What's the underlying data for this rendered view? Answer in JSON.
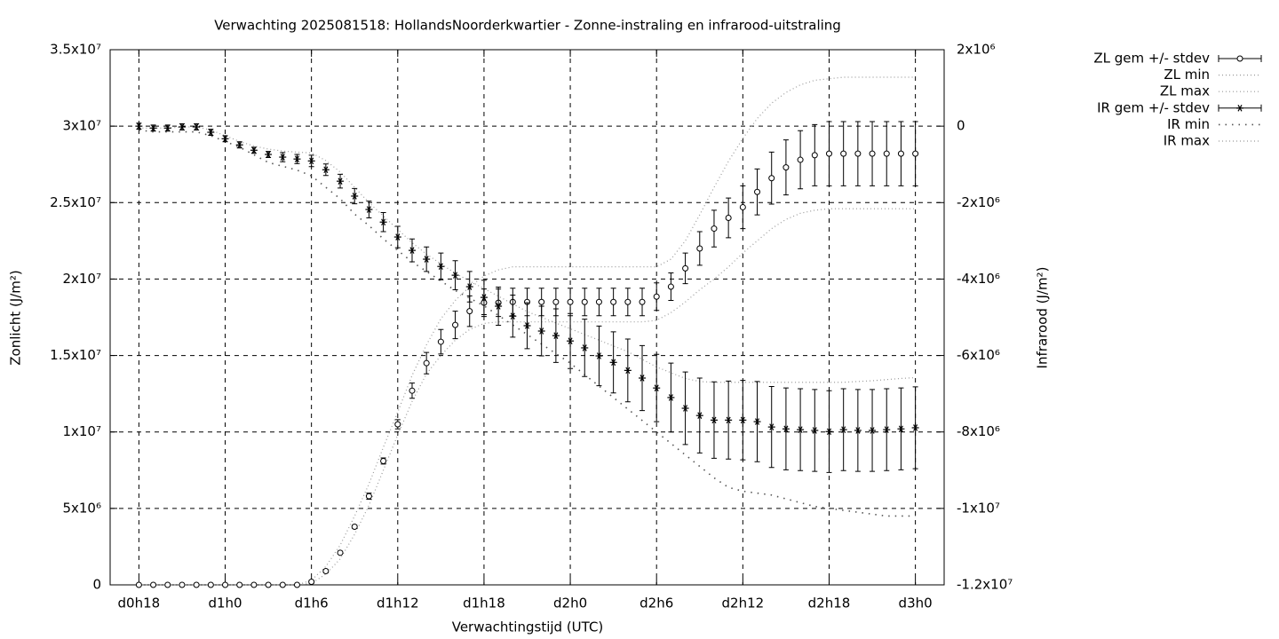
{
  "chart_data": {
    "type": "errorbar-line",
    "title": "Verwachting 2025081518: HollandsNoorderkwartier - Zonne-instraling en infrarood-uitstraling",
    "x_label": "Verwachtingstijd (UTC)",
    "y_label": "Zonlicht (J/m²)",
    "y2_label": "Infrarood (J/m²)",
    "x": [
      18,
      19,
      20,
      21,
      22,
      23,
      24,
      25,
      26,
      27,
      28,
      29,
      30,
      31,
      32,
      33,
      34,
      35,
      36,
      37,
      38,
      39,
      40,
      41,
      42,
      43,
      44,
      45,
      46,
      47,
      48,
      49,
      50,
      51,
      52,
      53,
      54,
      55,
      56,
      57,
      58,
      59,
      60,
      61,
      62,
      63,
      64,
      65,
      66,
      67,
      68,
      69,
      70,
      71,
      72
    ],
    "xlim": [
      16,
      74
    ],
    "xticks": [
      {
        "value": 18,
        "label": "d0h18"
      },
      {
        "value": 24,
        "label": "d1h0"
      },
      {
        "value": 30,
        "label": "d1h6"
      },
      {
        "value": 36,
        "label": "d1h12"
      },
      {
        "value": 42,
        "label": "d1h18"
      },
      {
        "value": 48,
        "label": "d2h0"
      },
      {
        "value": 54,
        "label": "d2h6"
      },
      {
        "value": 60,
        "label": "d2h12"
      },
      {
        "value": 66,
        "label": "d2h18"
      },
      {
        "value": 72,
        "label": "d3h0"
      }
    ],
    "ylim": [
      0,
      35000000.0
    ],
    "yticks": [
      0,
      {
        "value": 5000000.0,
        "label": "5x10⁶"
      },
      {
        "value": 10000000.0,
        "label": "1x10⁷"
      },
      {
        "value": 15000000.0,
        "label": "1.5x10⁷"
      },
      {
        "value": 20000000.0,
        "label": "2x10⁷"
      },
      {
        "value": 25000000.0,
        "label": "2.5x10⁷"
      },
      {
        "value": 30000000.0,
        "label": "3x10⁷"
      },
      {
        "value": 35000000.0,
        "label": "3.5x10⁷"
      }
    ],
    "y2lim": [
      -12000000.0,
      2000000.0
    ],
    "y2ticks": [
      {
        "value": -12000000.0,
        "label": "-1.2x10⁷"
      },
      {
        "value": -10000000.0,
        "label": "-1x10⁷"
      },
      {
        "value": -8000000.0,
        "label": "-8x10⁶"
      },
      {
        "value": -6000000.0,
        "label": "-6x10⁶"
      },
      {
        "value": -4000000.0,
        "label": "-4x10⁶"
      },
      {
        "value": -2000000.0,
        "label": "-2x10⁶"
      },
      0,
      {
        "value": 2000000.0,
        "label": "2x10⁶"
      }
    ],
    "grid": true,
    "legend": "outside-right",
    "series": [
      {
        "name": "ZL gem +/- stdev",
        "color": "#000000",
        "marker": "circle",
        "values": [
          0,
          0,
          0,
          0,
          0,
          0,
          0,
          0,
          0,
          0,
          0,
          0,
          200000.0,
          900000.0,
          2100000.0,
          3800000.0,
          5800000.0,
          8100000.0,
          10500000.0,
          12700000.0,
          14500000.0,
          15900000.0,
          17000000.0,
          17900000.0,
          18450000.0,
          18450000.0,
          18500000.0,
          18500000.0,
          18500000.0,
          18500000.0,
          18500000.0,
          18500000.0,
          18500000.0,
          18500000.0,
          18500000.0,
          18500000.0,
          18850000.0,
          19500000.0,
          20700000.0,
          22000000.0,
          23300000.0,
          24000000.0,
          24700000.0,
          25700000.0,
          26600000.0,
          27300000.0,
          27800000.0,
          28100000.0,
          28200000.0,
          28200000.0,
          28200000.0,
          28200000.0,
          28200000.0,
          28200000.0,
          28200000.0
        ],
        "errors": [
          0,
          0,
          0,
          0,
          0,
          0,
          0,
          0,
          0,
          0,
          0,
          0,
          100000.0,
          100000.0,
          100000.0,
          100000.0,
          200000.0,
          200000.0,
          300000.0,
          500000.0,
          700000.0,
          800000.0,
          900000.0,
          1000000.0,
          900000.0,
          900000.0,
          900000.0,
          900000.0,
          900000.0,
          900000.0,
          900000.0,
          900000.0,
          900000.0,
          900000.0,
          900000.0,
          900000.0,
          900000.0,
          900000.0,
          1000000.0,
          1100000.0,
          1200000.0,
          1300000.0,
          1400000.0,
          1500000.0,
          1700000.0,
          1800000.0,
          1900000.0,
          2000000.0,
          2100000.0,
          2100000.0,
          2100000.0,
          2100000.0,
          2100000.0,
          2100000.0,
          2100000.0
        ]
      },
      {
        "name": "ZL min",
        "color": "#999999",
        "line_style": "dotted",
        "values": [
          0,
          0,
          0,
          0,
          0,
          0,
          0,
          0,
          0,
          0,
          0,
          0,
          100000.0,
          700000.0,
          1700000.0,
          3300000.0,
          5200000.0,
          7500000.0,
          9800000.0,
          12000000.0,
          13800000.0,
          15000000.0,
          16000000.0,
          16700000.0,
          17100000.0,
          17200000.0,
          17200000.0,
          17200000.0,
          17200000.0,
          17200000.0,
          17200000.0,
          17200000.0,
          17200000.0,
          17200000.0,
          17200000.0,
          17200000.0,
          17300000.0,
          17800000.0,
          18500000.0,
          19300000.0,
          20000000.0,
          20800000.0,
          21700000.0,
          22500000.0,
          23300000.0,
          23900000.0,
          24300000.0,
          24500000.0,
          24600000.0,
          24600000.0,
          24600000.0,
          24600000.0,
          24600000.0,
          24600000.0,
          24600000.0
        ]
      },
      {
        "name": "ZL max",
        "color": "#999999",
        "line_style": "dotted",
        "values": [
          0,
          0,
          0,
          0,
          0,
          0,
          0,
          0,
          0,
          0,
          0,
          0,
          300000.0,
          1200000.0,
          2600000.0,
          4500000.0,
          6600000.0,
          9000000.0,
          11300000.0,
          13700000.0,
          15700000.0,
          17400000.0,
          18600000.0,
          19500000.0,
          20200000.0,
          20600000.0,
          20800000.0,
          20800000.0,
          20800000.0,
          20800000.0,
          20800000.0,
          20800000.0,
          20800000.0,
          20800000.0,
          20800000.0,
          20800000.0,
          20800000.0,
          21300000.0,
          22500000.0,
          24200000.0,
          26000000.0,
          27700000.0,
          29200000.0,
          30500000.0,
          31500000.0,
          32200000.0,
          32700000.0,
          33000000.0,
          33100000.0,
          33200000.0,
          33200000.0,
          33200000.0,
          33200000.0,
          33200000.0,
          33200000.0
        ]
      },
      {
        "name": "IR gem +/- stdev",
        "color": "#000000",
        "marker": "asterisk",
        "axis": "y2",
        "values": [
          0,
          -50000.0,
          -50000.0,
          -20000.0,
          -20000.0,
          -160000.0,
          -330000.0,
          -490000.0,
          -630000.0,
          -740000.0,
          -810000.0,
          -860000.0,
          -910000.0,
          -1140000.0,
          -1440000.0,
          -1830000.0,
          -2180000.0,
          -2510000.0,
          -2900000.0,
          -3250000.0,
          -3480000.0,
          -3670000.0,
          -3900000.0,
          -4200000.0,
          -4480000.0,
          -4710000.0,
          -4970000.0,
          -5220000.0,
          -5360000.0,
          -5480000.0,
          -5620000.0,
          -5800000.0,
          -6010000.0,
          -6180000.0,
          -6390000.0,
          -6590000.0,
          -6850000.0,
          -7100000.0,
          -7380000.0,
          -7570000.0,
          -7690000.0,
          -7690000.0,
          -7690000.0,
          -7730000.0,
          -7870000.0,
          -7920000.0,
          -7940000.0,
          -7960000.0,
          -7990000.0,
          -7940000.0,
          -7960000.0,
          -7960000.0,
          -7940000.0,
          -7920000.0,
          -7890000.0
        ],
        "errors": [
          80000.0,
          80000.0,
          80000.0,
          80000.0,
          80000.0,
          80000.0,
          80000.0,
          80000.0,
          80000.0,
          80000.0,
          120000.0,
          120000.0,
          150000.0,
          150000.0,
          180000.0,
          200000.0,
          220000.0,
          250000.0,
          280000.0,
          300000.0,
          320000.0,
          350000.0,
          380000.0,
          400000.0,
          450000.0,
          500000.0,
          550000.0,
          600000.0,
          650000.0,
          700000.0,
          720000.0,
          750000.0,
          780000.0,
          800000.0,
          820000.0,
          850000.0,
          880000.0,
          900000.0,
          950000.0,
          980000.0,
          1000000.0,
          1020000.0,
          1040000.0,
          1050000.0,
          1060000.0,
          1070000.0,
          1070000.0,
          1070000.0,
          1070000.0,
          1070000.0,
          1070000.0,
          1070000.0,
          1070000.0,
          1070000.0,
          1070000.0
        ]
      },
      {
        "name": "IR min",
        "color": "#555555",
        "line_style": "sparse-dotted",
        "axis": "y2",
        "values": [
          -100000.0,
          -150000.0,
          -150000.0,
          -150000.0,
          -150000.0,
          -250000.0,
          -400000.0,
          -550000.0,
          -750000.0,
          -950000.0,
          -1050000.0,
          -1150000.0,
          -1300000.0,
          -1600000.0,
          -1900000.0,
          -2300000.0,
          -2600000.0,
          -2950000.0,
          -3250000.0,
          -3550000.0,
          -3800000.0,
          -4050000.0,
          -4300000.0,
          -4500000.0,
          -4700000.0,
          -4950000.0,
          -5200000.0,
          -5450000.0,
          -5700000.0,
          -5950000.0,
          -6200000.0,
          -6500000.0,
          -6800000.0,
          -7100000.0,
          -7400000.0,
          -7700000.0,
          -8000000.0,
          -8300000.0,
          -8600000.0,
          -8900000.0,
          -9200000.0,
          -9450000.0,
          -9550000.0,
          -9600000.0,
          -9650000.0,
          -9750000.0,
          -9850000.0,
          -9950000.0,
          -10000000.0,
          -10050000.0,
          -10100000.0,
          -10150000.0,
          -10200000.0,
          -10200000.0,
          -10200000.0
        ]
      },
      {
        "name": "IR max",
        "color": "#999999",
        "line_style": "dotted",
        "axis": "y2",
        "values": [
          -50000.0,
          -50000.0,
          -50000.0,
          -20000.0,
          -20000.0,
          -100000.0,
          -250000.0,
          -400000.0,
          -520000.0,
          -600000.0,
          -650000.0,
          -680000.0,
          -700000.0,
          -900000.0,
          -1200000.0,
          -1600000.0,
          -2000000.0,
          -2350000.0,
          -2700000.0,
          -3050000.0,
          -3350000.0,
          -3600000.0,
          -3850000.0,
          -4050000.0,
          -4250000.0,
          -4450000.0,
          -4650000.0,
          -4850000.0,
          -5000000.0,
          -5150000.0,
          -5300000.0,
          -5450000.0,
          -5600000.0,
          -5750000.0,
          -5900000.0,
          -6100000.0,
          -6300000.0,
          -6450000.0,
          -6600000.0,
          -6680000.0,
          -6700000.0,
          -6700000.0,
          -6700000.0,
          -6700000.0,
          -6700000.0,
          -6700000.0,
          -6700000.0,
          -6700000.0,
          -6700000.0,
          -6700000.0,
          -6680000.0,
          -6660000.0,
          -6630000.0,
          -6600000.0,
          -6580000.0
        ]
      }
    ]
  }
}
